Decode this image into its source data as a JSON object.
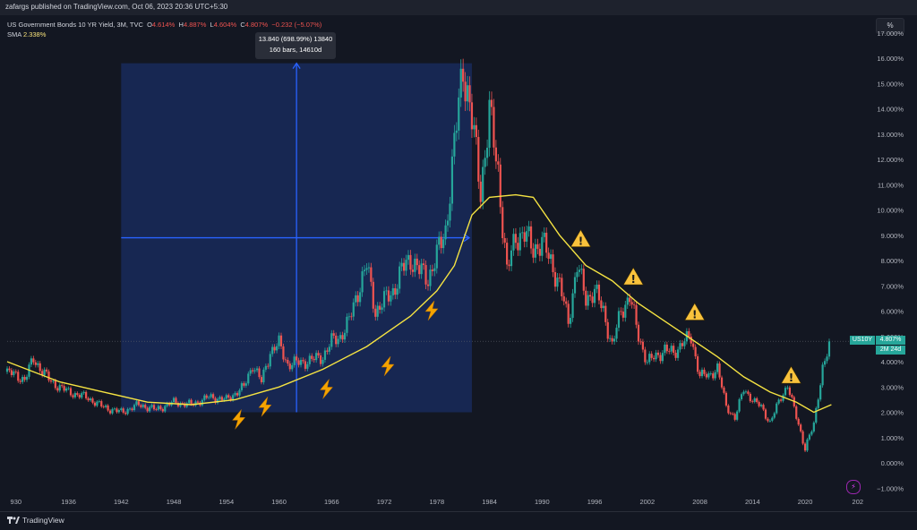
{
  "header": {
    "publisher": "zafargs published on TradingView.com, Oct 06, 2023 20:36 UTC+5:30",
    "symbol_line": "US Government Bonds 10 YR Yield, 3M, TVC",
    "ohlc": {
      "o_label": "O",
      "o": "4.614%",
      "h_label": "H",
      "h": "4.887%",
      "l_label": "L",
      "l": "4.604%",
      "c_label": "C",
      "c": "4.807%",
      "change": "−0.232 (−5.07%)"
    },
    "indicator_name": "SMA",
    "indicator_value": "2.338%",
    "scale_button": "%"
  },
  "measure": {
    "line1": "13.840 (698.99%) 13840",
    "line2": "160 bars, 14610d"
  },
  "price_tag": {
    "symbol": "US10Y",
    "price": "4.807%",
    "countdown": "2M 24d"
  },
  "footer": {
    "brand": "TradingView"
  },
  "colors": {
    "background": "#131722",
    "up": "#26a69a",
    "down": "#ef5350",
    "sma": "#f5e342",
    "measure": "#2962ff",
    "warning": "#f9c23c",
    "lightning": "#f4a300"
  },
  "chart_data": {
    "type": "candlestick",
    "x_ticks": [
      "930",
      "1936",
      "1942",
      "1948",
      "1954",
      "1960",
      "1966",
      "1972",
      "1978",
      "1984",
      "1990",
      "1996",
      "2002",
      "2008",
      "2014",
      "2020",
      "202"
    ],
    "y_ticks": [
      "17.000%",
      "16.000%",
      "15.000%",
      "14.000%",
      "13.000%",
      "12.000%",
      "11.000%",
      "10.000%",
      "9.000%",
      "8.000%",
      "7.000%",
      "6.000%",
      "5.000%",
      "4.000%",
      "3.000%",
      "2.000%",
      "1.000%",
      "0.000%",
      "−1.000%"
    ],
    "ylim": [
      -1,
      17
    ],
    "series": [
      {
        "name": "US10Y",
        "points": [
          [
            1929,
            3.6
          ],
          [
            1931,
            3.3
          ],
          [
            1932,
            4.1
          ],
          [
            1934,
            3.2
          ],
          [
            1936,
            2.8
          ],
          [
            1938,
            2.6
          ],
          [
            1940,
            2.2
          ],
          [
            1942,
            2.0
          ],
          [
            1944,
            2.3
          ],
          [
            1946,
            2.1
          ],
          [
            1948,
            2.4
          ],
          [
            1950,
            2.3
          ],
          [
            1952,
            2.6
          ],
          [
            1954,
            2.5
          ],
          [
            1956,
            3.0
          ],
          [
            1957,
            3.9
          ],
          [
            1958,
            3.2
          ],
          [
            1959,
            4.4
          ],
          [
            1960,
            4.7
          ],
          [
            1961,
            3.9
          ],
          [
            1963,
            4.0
          ],
          [
            1965,
            4.2
          ],
          [
            1966,
            4.8
          ],
          [
            1967,
            5.0
          ],
          [
            1968,
            5.6
          ],
          [
            1969,
            6.8
          ],
          [
            1970,
            7.8
          ],
          [
            1971,
            6.0
          ],
          [
            1972,
            6.4
          ],
          [
            1973,
            6.8
          ],
          [
            1974,
            7.6
          ],
          [
            1975,
            8.1
          ],
          [
            1976,
            7.6
          ],
          [
            1977,
            7.3
          ],
          [
            1978,
            8.2
          ],
          [
            1979,
            9.2
          ],
          [
            1980,
            12.5
          ],
          [
            1981,
            15.8
          ],
          [
            1982,
            13.5
          ],
          [
            1983,
            10.8
          ],
          [
            1984,
            13.8
          ],
          [
            1985,
            11.5
          ],
          [
            1986,
            7.5
          ],
          [
            1987,
            9.0
          ],
          [
            1988,
            9.0
          ],
          [
            1989,
            8.5
          ],
          [
            1990,
            8.7
          ],
          [
            1991,
            8.0
          ],
          [
            1992,
            7.0
          ],
          [
            1993,
            5.6
          ],
          [
            1994,
            7.8
          ],
          [
            1995,
            6.5
          ],
          [
            1996,
            6.8
          ],
          [
            1997,
            6.0
          ],
          [
            1998,
            4.6
          ],
          [
            1999,
            6.0
          ],
          [
            2000,
            6.6
          ],
          [
            2001,
            5.0
          ],
          [
            2002,
            4.0
          ],
          [
            2003,
            4.2
          ],
          [
            2004,
            4.5
          ],
          [
            2005,
            4.3
          ],
          [
            2006,
            4.8
          ],
          [
            2007,
            4.9
          ],
          [
            2008,
            3.5
          ],
          [
            2009,
            3.4
          ],
          [
            2010,
            3.8
          ],
          [
            2011,
            2.2
          ],
          [
            2012,
            1.8
          ],
          [
            2013,
            2.9
          ],
          [
            2014,
            2.5
          ],
          [
            2015,
            2.2
          ],
          [
            2016,
            1.6
          ],
          [
            2017,
            2.4
          ],
          [
            2018,
            3.1
          ],
          [
            2019,
            1.8
          ],
          [
            2020,
            0.6
          ],
          [
            2021,
            1.5
          ],
          [
            2022,
            3.8
          ],
          [
            2023,
            4.8
          ]
        ]
      },
      {
        "name": "SMA",
        "points": [
          [
            1929,
            4.0
          ],
          [
            1935,
            3.2
          ],
          [
            1940,
            2.8
          ],
          [
            1945,
            2.4
          ],
          [
            1950,
            2.3
          ],
          [
            1955,
            2.5
          ],
          [
            1960,
            3.0
          ],
          [
            1965,
            3.7
          ],
          [
            1970,
            4.6
          ],
          [
            1975,
            5.8
          ],
          [
            1978,
            6.8
          ],
          [
            1980,
            7.8
          ],
          [
            1982,
            9.8
          ],
          [
            1984,
            10.5
          ],
          [
            1987,
            10.6
          ],
          [
            1989,
            10.5
          ],
          [
            1992,
            9.0
          ],
          [
            1995,
            7.8
          ],
          [
            1998,
            7.2
          ],
          [
            2001,
            6.3
          ],
          [
            2004,
            5.6
          ],
          [
            2007,
            4.9
          ],
          [
            2010,
            4.2
          ],
          [
            2013,
            3.4
          ],
          [
            2016,
            2.8
          ],
          [
            2019,
            2.4
          ],
          [
            2021,
            2.0
          ],
          [
            2023,
            2.3
          ]
        ]
      }
    ],
    "annotations": {
      "warnings": [
        1994,
        2000,
        2007,
        2018
      ],
      "lightning": [
        1955,
        1958,
        1965,
        1972,
        1977
      ]
    }
  }
}
